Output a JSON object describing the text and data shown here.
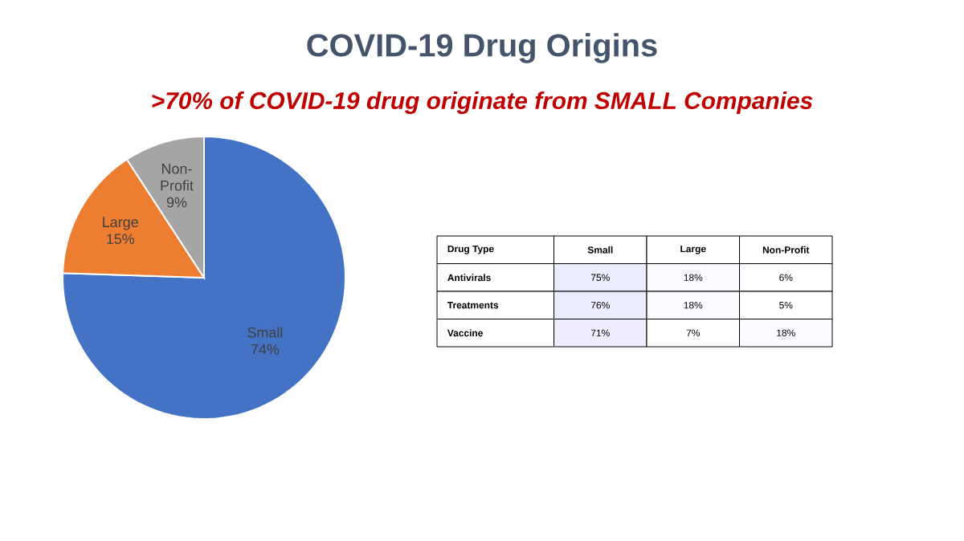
{
  "chart_data": [
    {
      "type": "pie",
      "title": "COVID-19 Drug Origins",
      "subtitle": ">70% of COVID-19 drug originate from SMALL Companies",
      "categories": [
        "Small",
        "Large",
        "Non-Profit"
      ],
      "values": [
        74,
        15,
        9
      ],
      "colors": [
        "#4472c4",
        "#ed7d31",
        "#a5a5a5"
      ],
      "value_labels": [
        "74%",
        "15%",
        "9%"
      ]
    },
    {
      "type": "heatmap",
      "ylabel": "Drug Type",
      "categories": [
        "Small",
        "Large",
        "Non-Profit"
      ],
      "y_categories": [
        "Antivirals",
        "Treatments",
        "Vaccine"
      ],
      "cells": [
        [
          75,
          18,
          6
        ],
        [
          76,
          18,
          5
        ],
        [
          71,
          7,
          18
        ]
      ],
      "cell_labels": [
        [
          "75%",
          "18%",
          "6%"
        ],
        [
          "76%",
          "18%",
          "5%"
        ],
        [
          "71%",
          "7%",
          "18%"
        ]
      ]
    }
  ]
}
